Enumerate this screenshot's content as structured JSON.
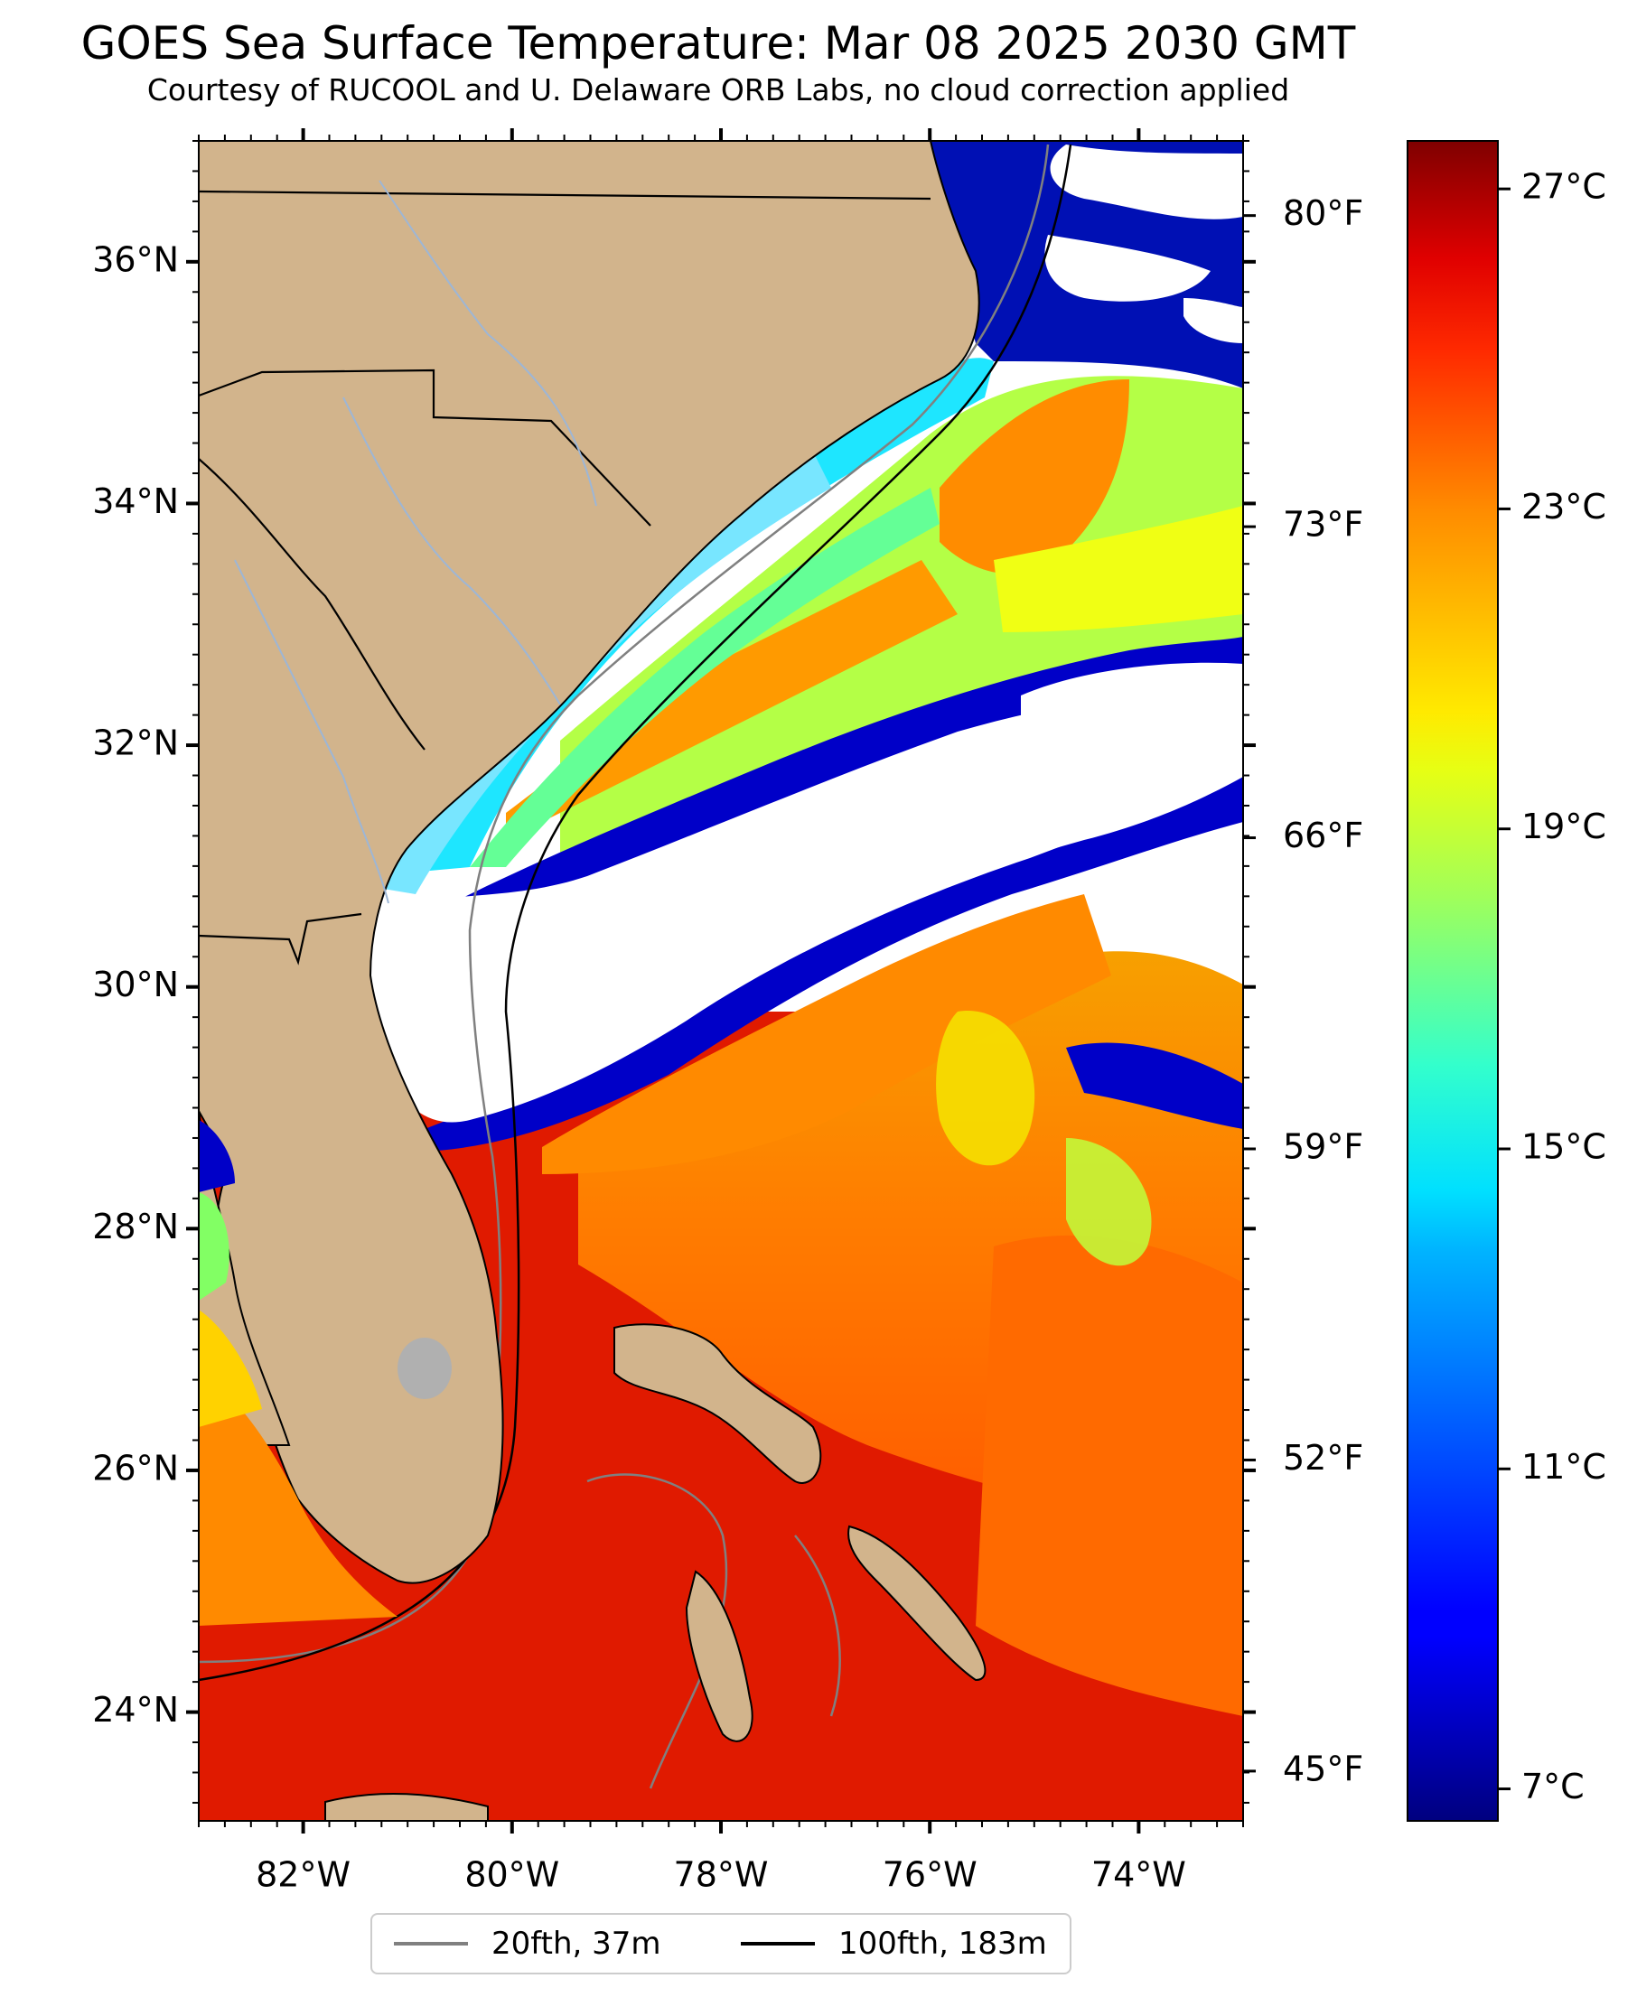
{
  "title": "GOES Sea Surface Temperature: Mar 08 2025 2030 GMT",
  "subtitle": "Courtesy of RUCOOL and U. Delaware ORB Labs, no cloud correction applied",
  "map": {
    "lon_range": [
      -83,
      -73
    ],
    "lat_range": [
      23.1,
      37.0
    ],
    "lon_ticks": [
      "82°W",
      "80°W",
      "78°W",
      "76°W",
      "74°W"
    ],
    "lat_ticks": [
      "36°N",
      "34°N",
      "32°N",
      "30°N",
      "28°N",
      "26°N",
      "24°N"
    ],
    "f_ticks": [
      "80°F",
      "73°F",
      "66°F",
      "59°F",
      "52°F",
      "45°F"
    ]
  },
  "colorbar": {
    "range_c": [
      6.6,
      27.6
    ],
    "ticks": [
      "27°C",
      "23°C",
      "19°C",
      "15°C",
      "11°C",
      "7°C"
    ],
    "colormap": "jet"
  },
  "legend": {
    "items": [
      {
        "label": "20fth, 37m",
        "color": "#808080"
      },
      {
        "label": "100fth, 183m",
        "color": "#000000"
      }
    ]
  },
  "colors": {
    "land": "#d2b48c",
    "lake": "#b0b0b0",
    "river": "#9db6d6"
  }
}
